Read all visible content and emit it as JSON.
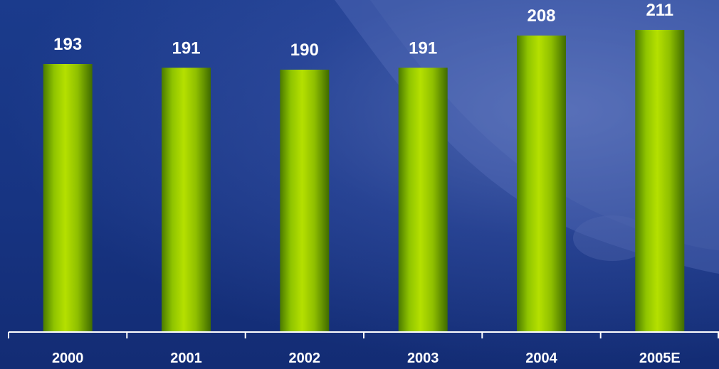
{
  "chart_data": {
    "type": "bar",
    "categories": [
      "2000",
      "2001",
      "2002",
      "2003",
      "2004",
      "2005E"
    ],
    "values": [
      193,
      191,
      190,
      191,
      208,
      211
    ],
    "data_labels": [
      "193",
      "191",
      "190",
      "191",
      "208",
      "211"
    ],
    "title": "",
    "xlabel": "",
    "ylabel": "",
    "grid": false,
    "legend": "none",
    "colors": {
      "bar_light": "#a6d400",
      "bar_dark": "#3f6b00",
      "background": "#173482",
      "axis": "#ffffff",
      "text": "#ffffff"
    }
  }
}
